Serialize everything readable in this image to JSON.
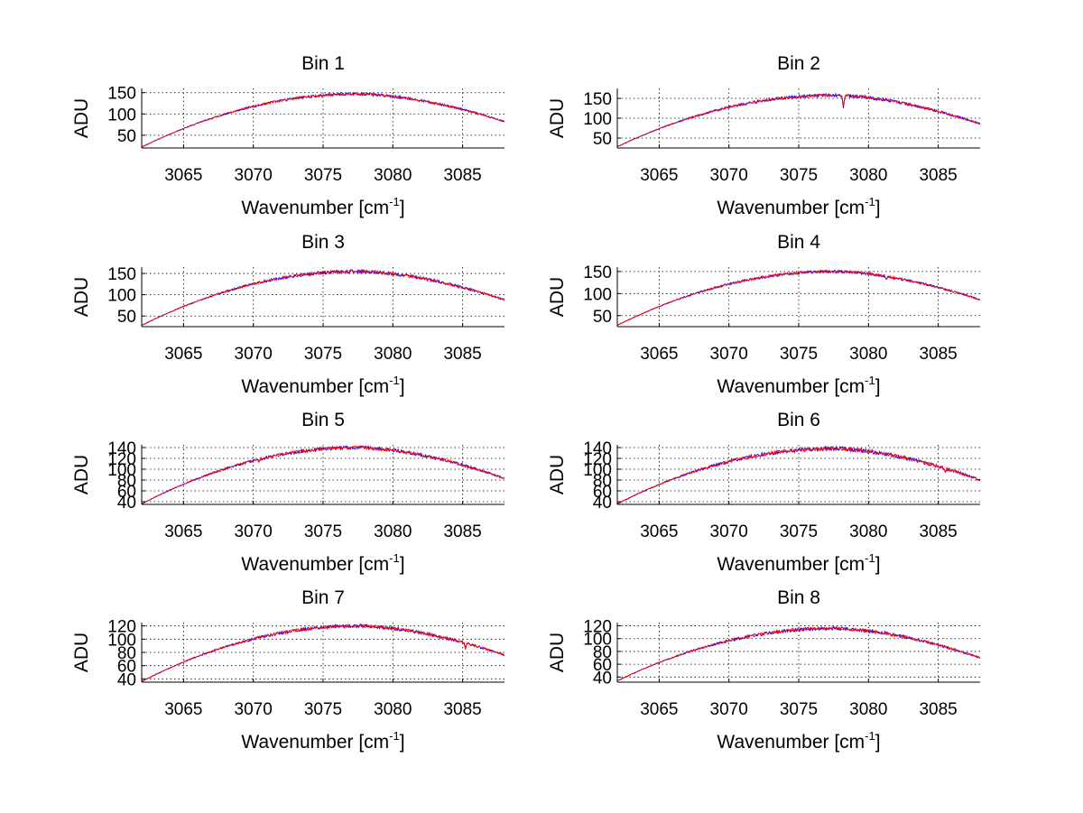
{
  "chart_data": [
    {
      "type": "line",
      "title": "Bin 1",
      "xlabel": "Wavenumber [cm",
      "xlabel_sup": "-1",
      "xlabel_close": "]",
      "ylabel": "ADU",
      "xlim": [
        3062,
        3088
      ],
      "ylim": [
        20,
        160
      ],
      "xticks": [
        3065,
        3070,
        3075,
        3080,
        3085
      ],
      "yticks": [
        50,
        100,
        150
      ],
      "curve": {
        "start": 22,
        "peak": 147,
        "peak_x": 3077.5,
        "end": 82,
        "noise": 2.5,
        "dips": []
      },
      "series": [
        {
          "name": "series-blue",
          "color": "#0000ff"
        },
        {
          "name": "series-red",
          "color": "#ff0000"
        }
      ]
    },
    {
      "type": "line",
      "title": "Bin 2",
      "xlabel": "Wavenumber [cm",
      "xlabel_sup": "-1",
      "xlabel_close": "]",
      "ylabel": "ADU",
      "xlim": [
        3062,
        3088
      ],
      "ylim": [
        25,
        175
      ],
      "xticks": [
        3065,
        3070,
        3075,
        3080,
        3085
      ],
      "yticks": [
        50,
        100,
        150
      ],
      "curve": {
        "start": 28,
        "peak": 158,
        "peak_x": 3077.5,
        "end": 86,
        "noise": 3,
        "dips": [
          [
            3078.2,
            30
          ]
        ]
      },
      "series": [
        {
          "name": "series-blue",
          "color": "#0000ff"
        },
        {
          "name": "series-red",
          "color": "#ff0000"
        }
      ]
    },
    {
      "type": "line",
      "title": "Bin 3",
      "xlabel": "Wavenumber [cm",
      "xlabel_sup": "-1",
      "xlabel_close": "]",
      "ylabel": "ADU",
      "xlim": [
        3062,
        3088
      ],
      "ylim": [
        25,
        165
      ],
      "xticks": [
        3065,
        3070,
        3075,
        3080,
        3085
      ],
      "yticks": [
        50,
        100,
        150
      ],
      "curve": {
        "start": 28,
        "peak": 155,
        "peak_x": 3077.5,
        "end": 88,
        "noise": 3,
        "dips": []
      },
      "series": [
        {
          "name": "series-blue",
          "color": "#0000ff"
        },
        {
          "name": "series-red",
          "color": "#ff0000"
        }
      ]
    },
    {
      "type": "line",
      "title": "Bin 4",
      "xlabel": "Wavenumber [cm",
      "xlabel_sup": "-1",
      "xlabel_close": "]",
      "ylabel": "ADU",
      "xlim": [
        3062,
        3088
      ],
      "ylim": [
        25,
        160
      ],
      "xticks": [
        3065,
        3070,
        3075,
        3080,
        3085
      ],
      "yticks": [
        50,
        100,
        150
      ],
      "curve": {
        "start": 28,
        "peak": 150,
        "peak_x": 3077.5,
        "end": 86,
        "noise": 2.5,
        "dips": [
          [
            3081.3,
            6
          ]
        ]
      },
      "series": [
        {
          "name": "series-blue",
          "color": "#0000ff"
        },
        {
          "name": "series-red",
          "color": "#ff0000"
        }
      ]
    },
    {
      "type": "line",
      "title": "Bin 5",
      "xlabel": "Wavenumber [cm",
      "xlabel_sup": "-1",
      "xlabel_close": "]",
      "ylabel": "ADU",
      "xlim": [
        3062,
        3088
      ],
      "ylim": [
        35,
        145
      ],
      "xticks": [
        3065,
        3070,
        3075,
        3080,
        3085
      ],
      "yticks": [
        40,
        60,
        80,
        100,
        120,
        140
      ],
      "ytick_labels": [
        "40",
        "60",
        "80",
        "100",
        "120",
        "140"
      ],
      "curve": {
        "start": 36,
        "peak": 140,
        "peak_x": 3077.5,
        "end": 83,
        "noise": 2.5,
        "dips": [
          [
            3070.4,
            4
          ]
        ]
      },
      "series": [
        {
          "name": "series-blue",
          "color": "#0000ff"
        },
        {
          "name": "series-red",
          "color": "#ff0000"
        }
      ]
    },
    {
      "type": "line",
      "title": "Bin 6",
      "xlabel": "Wavenumber [cm",
      "xlabel_sup": "-1",
      "xlabel_close": "]",
      "ylabel": "ADU",
      "xlim": [
        3062,
        3088
      ],
      "ylim": [
        35,
        145
      ],
      "xticks": [
        3065,
        3070,
        3075,
        3080,
        3085
      ],
      "yticks": [
        40,
        60,
        80,
        100,
        120,
        140
      ],
      "ytick_labels": [
        "40",
        "60",
        "80",
        "100",
        "120",
        "140"
      ],
      "curve": {
        "start": 36,
        "peak": 138,
        "peak_x": 3077.5,
        "end": 80,
        "noise": 3,
        "dips": [
          [
            3085.5,
            6
          ]
        ]
      },
      "series": [
        {
          "name": "series-blue",
          "color": "#0000ff"
        },
        {
          "name": "series-red",
          "color": "#ff0000"
        }
      ]
    },
    {
      "type": "line",
      "title": "Bin 7",
      "xlabel": "Wavenumber [cm",
      "xlabel_sup": "-1",
      "xlabel_close": "]",
      "ylabel": "ADU",
      "xlim": [
        3062,
        3088
      ],
      "ylim": [
        35,
        125
      ],
      "xticks": [
        3065,
        3070,
        3075,
        3080,
        3085
      ],
      "yticks": [
        40,
        60,
        80,
        100,
        120
      ],
      "ytick_labels": [
        "40",
        "60",
        "80",
        "100",
        "120"
      ],
      "curve": {
        "start": 36,
        "peak": 120,
        "peak_x": 3077.5,
        "end": 76,
        "noise": 2,
        "dips": [
          [
            3085.2,
            8
          ]
        ]
      },
      "series": [
        {
          "name": "series-blue",
          "color": "#0000ff"
        },
        {
          "name": "series-red",
          "color": "#ff0000"
        }
      ]
    },
    {
      "type": "line",
      "title": "Bin 8",
      "xlabel": "Wavenumber [cm",
      "xlabel_sup": "-1",
      "xlabel_close": "]",
      "ylabel": "ADU",
      "xlim": [
        3062,
        3088
      ],
      "ylim": [
        32,
        125
      ],
      "xticks": [
        3065,
        3070,
        3075,
        3080,
        3085
      ],
      "yticks": [
        40,
        60,
        80,
        100,
        120
      ],
      "ytick_labels": [
        "40",
        "60",
        "80",
        "100",
        "120"
      ],
      "curve": {
        "start": 34,
        "peak": 116,
        "peak_x": 3077.5,
        "end": 70,
        "noise": 2,
        "dips": []
      },
      "series": [
        {
          "name": "series-blue",
          "color": "#0000ff"
        },
        {
          "name": "series-red",
          "color": "#ff0000"
        }
      ]
    }
  ]
}
